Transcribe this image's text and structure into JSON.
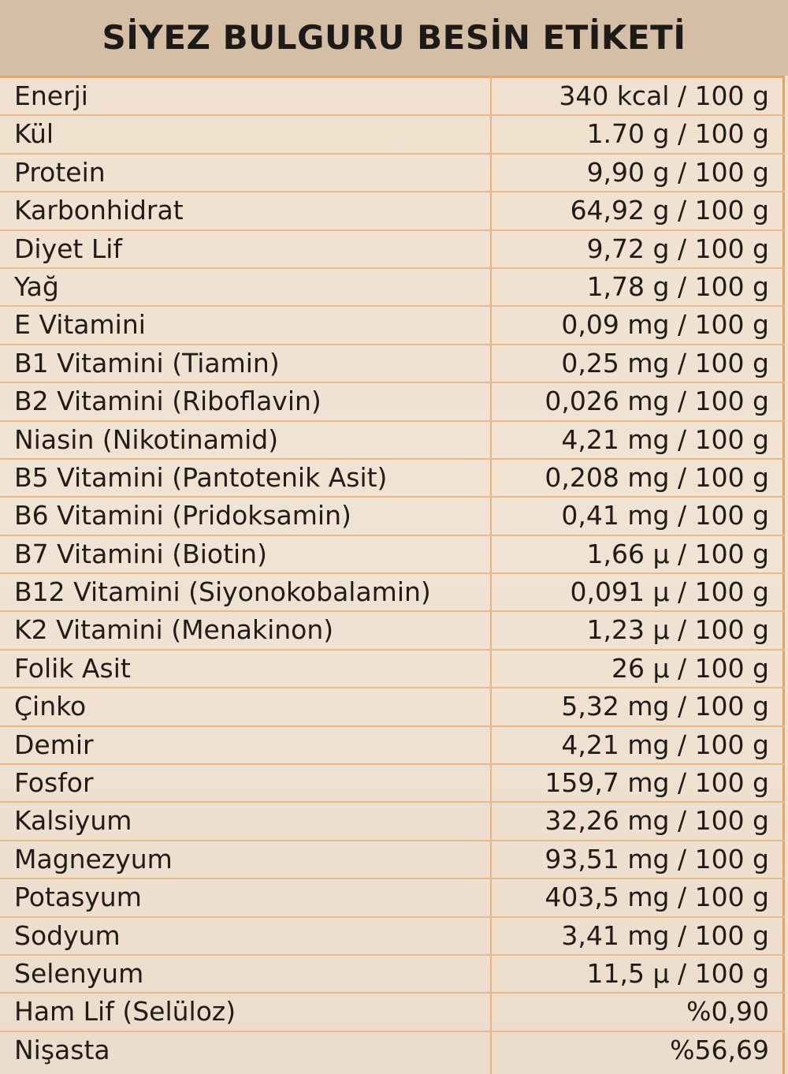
{
  "title": "SİYEZ BULGURU BESİN ETİKETİ",
  "rows": [
    {
      "name": "Enerji",
      "value": "340 kcal / 100 g"
    },
    {
      "name": "Kül",
      "value": "1.70 g / 100 g"
    },
    {
      "name": "Protein",
      "value": "9,90 g / 100 g"
    },
    {
      "name": "Karbonhidrat",
      "value": "64,92 g / 100 g"
    },
    {
      "name": "Diyet Lif",
      "value": "9,72 g / 100 g"
    },
    {
      "name": "Yağ",
      "value": "1,78 g / 100 g"
    },
    {
      "name": "E Vitamini",
      "value": "0,09 mg / 100 g"
    },
    {
      "name": "B1 Vitamini (Tiamin)",
      "value": "0,25 mg / 100 g"
    },
    {
      "name": "B2 Vitamini (Riboflavin)",
      "value": "0,026 mg / 100 g"
    },
    {
      "name": "Niasin (Nikotinamid)",
      "value": "4,21 mg / 100 g"
    },
    {
      "name": "B5 Vitamini (Pantotenik Asit)",
      "value": "0,208 mg / 100 g"
    },
    {
      "name": "B6 Vitamini (Pridoksamin)",
      "value": "0,41 mg / 100 g"
    },
    {
      "name": "B7 Vitamini (Biotin)",
      "value": "1,66 µ / 100 g"
    },
    {
      "name": "B12 Vitamini (Siyonokobalamin)",
      "value": "0,091 µ / 100 g"
    },
    {
      "name": "K2 Vitamini (Menakinon)",
      "value": "1,23 µ / 100 g"
    },
    {
      "name": "Folik Asit",
      "value": "26 µ / 100 g"
    },
    {
      "name": "Çinko",
      "value": "5,32 mg / 100 g"
    },
    {
      "name": "Demir",
      "value": "4,21 mg / 100 g"
    },
    {
      "name": "Fosfor",
      "value": "159,7 mg / 100 g"
    },
    {
      "name": "Kalsiyum",
      "value": "32,26 mg  / 100 g"
    },
    {
      "name": "Magnezyum",
      "value": "93,51 mg / 100 g"
    },
    {
      "name": "Potasyum",
      "value": "403,5 mg / 100 g"
    },
    {
      "name": "Sodyum",
      "value": "3,41 mg / 100 g"
    },
    {
      "name": "Selenyum",
      "value": "11,5 µ / 100 g"
    },
    {
      "name": "Ham Lif (Selüloz)",
      "value": "%0,90"
    },
    {
      "name": "Nişasta",
      "value": "%56,69"
    }
  ]
}
